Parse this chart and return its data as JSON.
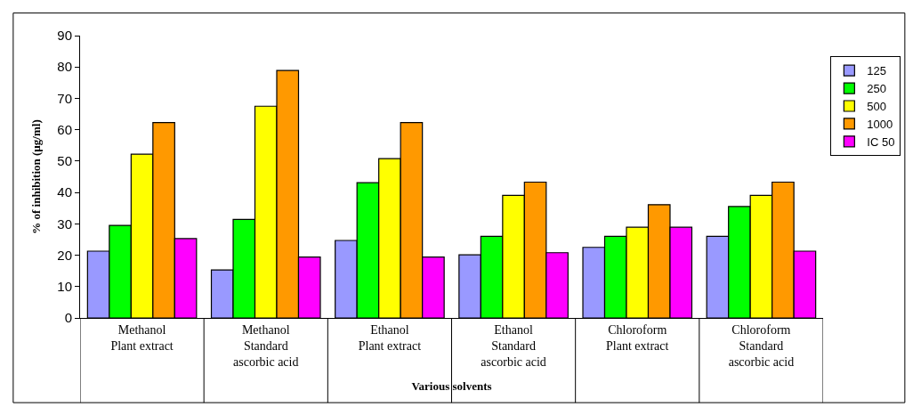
{
  "chart_data": {
    "type": "bar",
    "xlabel": "Various solvents",
    "ylabel": "% of inhibition (µg/ml)",
    "categories": [
      "Methanol\nPlant extract",
      "Methanol\nStandard\nascorbic acid",
      "Ethanol\nPlant extract",
      "Ethanol\nStandard\nascorbic acid",
      "Chloroform\nPlant extract",
      "Chloroform\nStandard\nascorbic acid"
    ],
    "series": [
      {
        "name": "125",
        "color": "#9999ff",
        "values": [
          21.3,
          15.3,
          24.7,
          20.1,
          22.5,
          26.0
        ]
      },
      {
        "name": "250",
        "color": "#00ff00",
        "values": [
          29.5,
          31.4,
          43.1,
          26.0,
          26.0,
          35.5
        ]
      },
      {
        "name": "500",
        "color": "#ffff00",
        "values": [
          52.2,
          67.5,
          50.8,
          39.1,
          28.9,
          39.1
        ]
      },
      {
        "name": "1000",
        "color": "#ff9900",
        "values": [
          62.3,
          78.9,
          62.3,
          43.3,
          36.1,
          43.3
        ]
      },
      {
        "name": "IC 50",
        "color": "#ff00ff",
        "values": [
          25.3,
          19.4,
          19.4,
          20.8,
          28.9,
          21.3
        ]
      }
    ],
    "ylim": [
      0,
      90
    ],
    "yticks": [
      0,
      10,
      20,
      30,
      40,
      50,
      60,
      70,
      80,
      90
    ],
    "grid": false,
    "legend": "right"
  }
}
